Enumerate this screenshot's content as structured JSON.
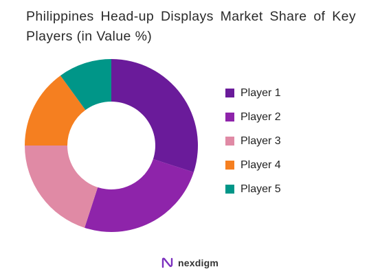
{
  "chart_data": {
    "type": "pie",
    "title": "Philippines Head-up Displays Market Share of Key Players (in Value %)",
    "categories": [
      "Player 1",
      "Player 2",
      "Player 3",
      "Player 4",
      "Player 5"
    ],
    "values": [
      30,
      25,
      20,
      15,
      10
    ],
    "colors": [
      "#6a1b9a",
      "#8e24aa",
      "#e08aa5",
      "#f57f20",
      "#009688"
    ],
    "legend_position": "right",
    "donut": true
  },
  "brand": {
    "name": "nexdigm",
    "icon": "nexdigm-logo-icon",
    "color": "#7b2fbe"
  }
}
